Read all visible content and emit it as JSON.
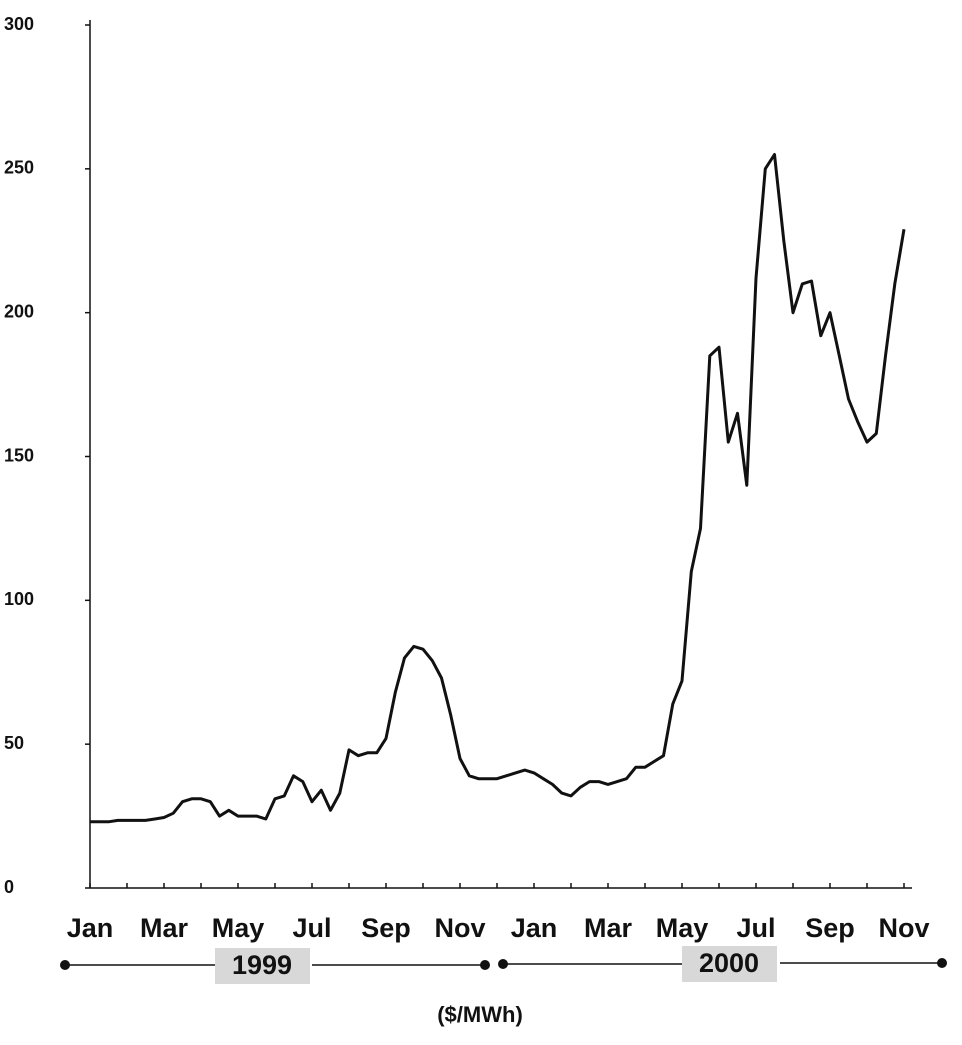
{
  "chart_data": {
    "type": "line",
    "categories": [
      "Jan",
      null,
      null,
      null,
      null,
      null,
      null,
      null,
      "Mar",
      null,
      null,
      null,
      null,
      null,
      null,
      null,
      "May",
      null,
      null,
      null,
      null,
      null,
      null,
      null,
      "Jul",
      null,
      null,
      null,
      null,
      null,
      null,
      null,
      "Sep",
      null,
      null,
      null,
      null,
      null,
      null,
      null,
      "Nov",
      null,
      null,
      null,
      null,
      null,
      null,
      null,
      "Jan",
      null,
      null,
      null,
      null,
      null,
      null,
      null,
      "Mar",
      null,
      null,
      null,
      null,
      null,
      null,
      null,
      "May",
      null,
      null,
      null,
      null,
      null,
      null,
      null,
      "Jul",
      null,
      null,
      null,
      null,
      null,
      null,
      null,
      "Sep",
      null,
      null,
      null,
      null,
      null,
      null,
      null,
      "Nov"
    ],
    "series": [
      {
        "color": "#111111",
        "values": [
          23,
          23,
          23,
          23.5,
          23.5,
          23.5,
          23.5,
          24,
          24.5,
          26,
          30,
          31,
          31,
          30,
          25,
          27,
          25,
          25,
          25,
          24,
          31,
          32,
          39,
          37,
          30,
          34,
          27,
          33,
          48,
          46,
          47,
          47,
          52,
          68,
          80,
          84,
          83,
          79,
          73,
          60,
          45,
          39,
          38,
          38,
          38,
          39,
          40,
          41,
          40,
          38,
          36,
          33,
          32,
          35,
          37,
          37,
          36,
          37,
          38,
          42,
          42,
          44,
          46,
          64,
          72,
          110,
          125,
          185,
          188,
          155,
          165,
          140,
          212,
          250,
          255,
          225,
          200,
          210,
          211,
          192,
          200,
          185,
          170,
          162,
          155,
          158,
          185,
          210,
          229
        ]
      }
    ],
    "ylim": [
      0,
      300
    ],
    "yticks": [
      0,
      50,
      100,
      150,
      200,
      250,
      300
    ],
    "annotations": [
      "1999",
      "2000"
    ],
    "unit_label": "($/MWh)"
  }
}
